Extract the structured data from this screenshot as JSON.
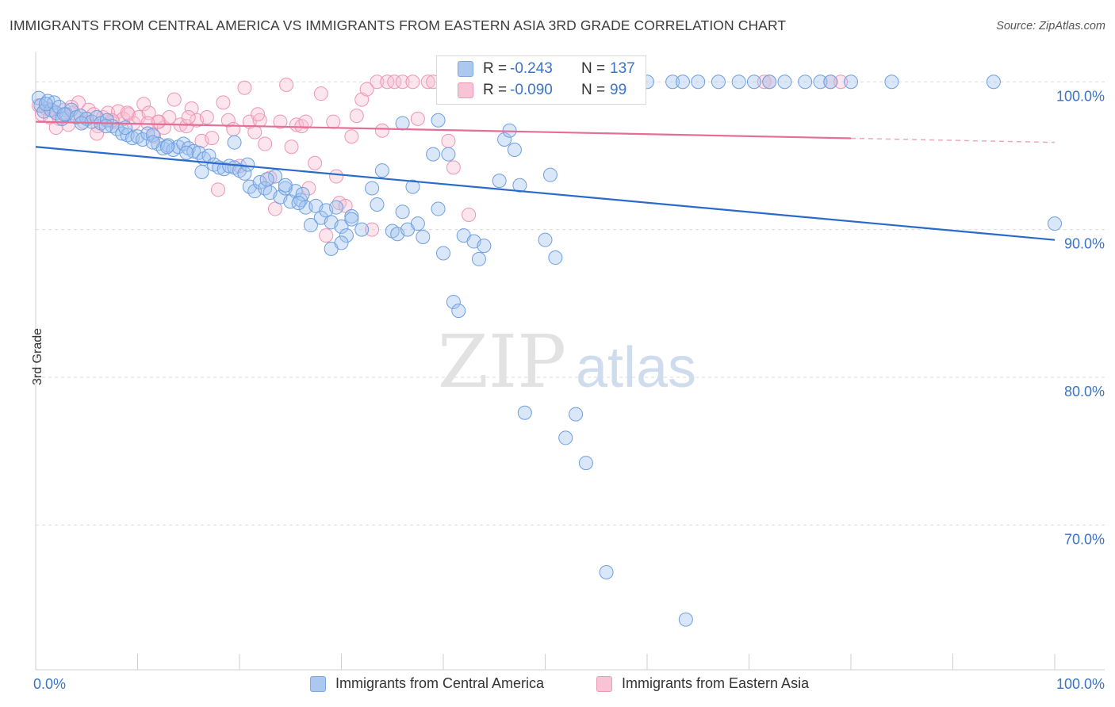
{
  "title": "IMMIGRANTS FROM CENTRAL AMERICA VS IMMIGRANTS FROM EASTERN ASIA 3RD GRADE CORRELATION CHART",
  "source": "Source: ZipAtlas.com",
  "watermark": {
    "zip": "ZIP",
    "atlas": "atlas"
  },
  "stats": [
    {
      "r_label": "R =",
      "r_value": "-0.243",
      "n_label": "N =",
      "n_value": "137"
    },
    {
      "r_label": "R =",
      "r_value": "-0.090",
      "n_label": "N =",
      "n_value": "99"
    }
  ],
  "legend": [
    {
      "label": "Immigrants from Central America",
      "color": "#aac8f0"
    },
    {
      "label": "Immigrants from Eastern Asia",
      "color": "#f8c3d4"
    }
  ],
  "colors": {
    "blue": "#6e9fdf",
    "blue_line": "#2a6bc9",
    "pink": "#ef95b3",
    "pink_line": "#e46e95",
    "axis_text": "#3b73c9"
  },
  "chart_data": {
    "type": "scatter",
    "title": "IMMIGRANTS FROM CENTRAL AMERICA VS IMMIGRANTS FROM EASTERN ASIA 3RD GRADE CORRELATION CHART",
    "xlabel": "",
    "ylabel": "3rd Grade",
    "xlim": [
      0,
      100
    ],
    "ylim": [
      60.2,
      102
    ],
    "x_tick_labels": [
      "0.0%",
      "100.0%"
    ],
    "y_ticks": [
      100,
      90,
      80,
      70
    ],
    "y_tick_labels": [
      "100.0%",
      "90.0%",
      "80.0%",
      "70.0%"
    ],
    "grid": true,
    "series": [
      {
        "name": "Immigrants from Central America",
        "trend": {
          "x0": 0,
          "y0": 95.6,
          "x1": 100,
          "y1": 89.3
        },
        "points": [
          [
            0.3,
            98.9
          ],
          [
            0.5,
            98.4
          ],
          [
            0.8,
            98.0
          ],
          [
            1.2,
            98.7
          ],
          [
            1.5,
            98.1
          ],
          [
            1.8,
            98.6
          ],
          [
            2.0,
            97.9
          ],
          [
            2.3,
            98.3
          ],
          [
            2.6,
            97.5
          ],
          [
            3.0,
            97.8
          ],
          [
            3.5,
            98.1
          ],
          [
            4.0,
            97.6
          ],
          [
            4.4,
            97.7
          ],
          [
            5.0,
            97.5
          ],
          [
            5.5,
            97.3
          ],
          [
            6.0,
            97.6
          ],
          [
            6.4,
            97.2
          ],
          [
            7.0,
            97.4
          ],
          [
            7.5,
            97.0
          ],
          [
            8.0,
            96.8
          ],
          [
            8.5,
            96.5
          ],
          [
            9.0,
            96.4
          ],
          [
            9.5,
            96.2
          ],
          [
            10.0,
            96.3
          ],
          [
            10.5,
            96.1
          ],
          [
            11.0,
            96.5
          ],
          [
            11.5,
            96.4
          ],
          [
            12.0,
            95.8
          ],
          [
            12.5,
            95.5
          ],
          [
            13.0,
            95.7
          ],
          [
            13.5,
            95.4
          ],
          [
            14.0,
            95.6
          ],
          [
            14.5,
            95.8
          ],
          [
            15.0,
            95.5
          ],
          [
            15.5,
            95.3
          ],
          [
            16.0,
            95.2
          ],
          [
            16.5,
            94.8
          ],
          [
            17.0,
            95.0
          ],
          [
            17.5,
            94.4
          ],
          [
            18.0,
            94.2
          ],
          [
            18.5,
            94.1
          ],
          [
            19.0,
            94.3
          ],
          [
            19.5,
            94.2
          ],
          [
            20.0,
            94.0
          ],
          [
            20.5,
            93.8
          ],
          [
            21.0,
            92.9
          ],
          [
            21.5,
            92.6
          ],
          [
            22.0,
            93.2
          ],
          [
            22.5,
            92.8
          ],
          [
            23.0,
            92.5
          ],
          [
            23.5,
            93.6
          ],
          [
            24.0,
            92.2
          ],
          [
            24.5,
            92.8
          ],
          [
            25.0,
            91.9
          ],
          [
            25.5,
            92.6
          ],
          [
            26.0,
            92.0
          ],
          [
            26.5,
            91.5
          ],
          [
            27.0,
            90.3
          ],
          [
            27.5,
            91.6
          ],
          [
            28.0,
            90.8
          ],
          [
            28.5,
            91.3
          ],
          [
            29.0,
            90.5
          ],
          [
            29.5,
            91.5
          ],
          [
            30.0,
            90.2
          ],
          [
            30.5,
            89.6
          ],
          [
            31.0,
            90.9
          ],
          [
            32.0,
            90.0
          ],
          [
            33.0,
            92.8
          ],
          [
            33.5,
            91.7
          ],
          [
            34.0,
            94.0
          ],
          [
            35.0,
            89.9
          ],
          [
            35.5,
            89.7
          ],
          [
            36.0,
            91.2
          ],
          [
            36.5,
            90.0
          ],
          [
            37.0,
            92.9
          ],
          [
            37.5,
            90.4
          ],
          [
            38.0,
            89.5
          ],
          [
            39.0,
            95.1
          ],
          [
            39.5,
            91.4
          ],
          [
            40.0,
            88.4
          ],
          [
            40.5,
            95.1
          ],
          [
            41.0,
            85.1
          ],
          [
            41.5,
            84.5
          ],
          [
            42.0,
            89.6
          ],
          [
            43.0,
            89.2
          ],
          [
            43.5,
            88.0
          ],
          [
            44.0,
            88.9
          ],
          [
            45.5,
            93.3
          ],
          [
            46.0,
            96.1
          ],
          [
            46.5,
            96.7
          ],
          [
            47.0,
            95.4
          ],
          [
            47.5,
            93.0
          ],
          [
            48.0,
            77.6
          ],
          [
            50.0,
            89.3
          ],
          [
            50.5,
            93.7
          ],
          [
            51.0,
            88.1
          ],
          [
            52.0,
            75.9
          ],
          [
            53.0,
            77.5
          ],
          [
            54.0,
            74.2
          ],
          [
            56.0,
            66.8
          ],
          [
            60.0,
            100.0
          ],
          [
            62.5,
            100.0
          ],
          [
            63.5,
            100.0
          ],
          [
            65.0,
            100.0
          ],
          [
            67.0,
            100.0
          ],
          [
            69.0,
            100.0
          ],
          [
            70.5,
            100.0
          ],
          [
            72.0,
            100.0
          ],
          [
            73.5,
            100.0
          ],
          [
            75.5,
            100.0
          ],
          [
            77.0,
            100.0
          ],
          [
            78.0,
            100.0
          ],
          [
            80.0,
            100.0
          ],
          [
            84.0,
            100.0
          ],
          [
            94.0,
            100.0
          ],
          [
            100.0,
            90.4
          ],
          [
            63.8,
            63.6
          ],
          [
            29.0,
            88.7
          ],
          [
            24.5,
            93.0
          ],
          [
            11.5,
            95.9
          ],
          [
            19.5,
            95.9
          ],
          [
            4.5,
            97.2
          ],
          [
            2.8,
            97.8
          ],
          [
            1.0,
            98.5
          ],
          [
            36.0,
            97.2
          ],
          [
            39.5,
            97.4
          ],
          [
            8.8,
            96.9
          ],
          [
            14.8,
            95.2
          ],
          [
            22.7,
            93.4
          ],
          [
            26.2,
            92.4
          ],
          [
            31.0,
            90.7
          ],
          [
            16.3,
            93.9
          ],
          [
            20.8,
            94.4
          ],
          [
            6.9,
            97.0
          ],
          [
            12.9,
            95.6
          ],
          [
            30.0,
            89.1
          ],
          [
            25.8,
            91.8
          ]
        ]
      },
      {
        "name": "Immigrants from Eastern Asia",
        "trend": {
          "x0": 0,
          "y0": 97.3,
          "x1": 100,
          "y1": 95.9
        },
        "points": [
          [
            0.3,
            98.4
          ],
          [
            0.6,
            97.8
          ],
          [
            1.0,
            98.2
          ],
          [
            1.4,
            97.6
          ],
          [
            1.8,
            98.0
          ],
          [
            2.3,
            97.5
          ],
          [
            2.8,
            98.1
          ],
          [
            3.2,
            97.1
          ],
          [
            3.7,
            97.9
          ],
          [
            4.2,
            98.6
          ],
          [
            4.7,
            97.3
          ],
          [
            5.2,
            98.1
          ],
          [
            5.7,
            97.8
          ],
          [
            6.1,
            97.0
          ],
          [
            6.6,
            97.6
          ],
          [
            7.1,
            97.9
          ],
          [
            7.6,
            97.3
          ],
          [
            8.1,
            98.0
          ],
          [
            8.6,
            97.5
          ],
          [
            9.1,
            97.8
          ],
          [
            9.6,
            97.2
          ],
          [
            10.1,
            97.6
          ],
          [
            10.6,
            98.5
          ],
          [
            11.1,
            97.9
          ],
          [
            11.6,
            96.3
          ],
          [
            12.1,
            97.3
          ],
          [
            12.6,
            96.9
          ],
          [
            13.1,
            97.6
          ],
          [
            13.6,
            98.8
          ],
          [
            14.2,
            97.1
          ],
          [
            14.8,
            97.0
          ],
          [
            15.3,
            98.2
          ],
          [
            15.8,
            97.4
          ],
          [
            16.3,
            96.0
          ],
          [
            16.8,
            97.6
          ],
          [
            17.3,
            96.2
          ],
          [
            17.9,
            92.7
          ],
          [
            18.4,
            98.6
          ],
          [
            18.9,
            97.4
          ],
          [
            19.4,
            96.8
          ],
          [
            20.0,
            94.3
          ],
          [
            20.5,
            99.6
          ],
          [
            21.0,
            97.3
          ],
          [
            21.5,
            96.6
          ],
          [
            22.0,
            97.4
          ],
          [
            22.5,
            95.8
          ],
          [
            23.0,
            93.5
          ],
          [
            23.5,
            91.4
          ],
          [
            24.0,
            97.3
          ],
          [
            24.6,
            99.8
          ],
          [
            25.1,
            95.6
          ],
          [
            25.6,
            97.1
          ],
          [
            26.1,
            97.0
          ],
          [
            26.8,
            92.8
          ],
          [
            27.4,
            94.5
          ],
          [
            28.0,
            99.2
          ],
          [
            28.5,
            89.6
          ],
          [
            29.2,
            97.3
          ],
          [
            29.8,
            91.8
          ],
          [
            30.4,
            91.6
          ],
          [
            31.0,
            96.3
          ],
          [
            32.0,
            98.8
          ],
          [
            33.5,
            100.0
          ],
          [
            34.5,
            100.0
          ],
          [
            35.2,
            100.0
          ],
          [
            36.0,
            100.0
          ],
          [
            37.0,
            100.0
          ],
          [
            38.5,
            100.0
          ],
          [
            39.0,
            100.0
          ],
          [
            40.0,
            100.0
          ],
          [
            42.0,
            100.0
          ],
          [
            43.5,
            100.0
          ],
          [
            44.5,
            100.0
          ],
          [
            47.5,
            100.0
          ],
          [
            50.5,
            100.0
          ],
          [
            71.5,
            100.0
          ],
          [
            72.0,
            100.0
          ],
          [
            78.0,
            100.0
          ],
          [
            79.0,
            100.0
          ],
          [
            40.5,
            96.0
          ],
          [
            41.0,
            94.2
          ],
          [
            42.5,
            91.0
          ],
          [
            37.5,
            97.5
          ],
          [
            32.5,
            99.5
          ],
          [
            33.0,
            90.0
          ],
          [
            2.0,
            96.9
          ],
          [
            6.0,
            96.5
          ],
          [
            12.0,
            97.3
          ],
          [
            9.0,
            97.9
          ],
          [
            15.0,
            97.6
          ],
          [
            3.5,
            98.3
          ],
          [
            7.5,
            97.4
          ],
          [
            11.0,
            97.2
          ],
          [
            21.8,
            97.8
          ],
          [
            26.5,
            97.3
          ],
          [
            29.5,
            93.6
          ],
          [
            31.5,
            97.7
          ],
          [
            34.0,
            96.7
          ],
          [
            5.0,
            97.5
          ]
        ]
      }
    ]
  }
}
